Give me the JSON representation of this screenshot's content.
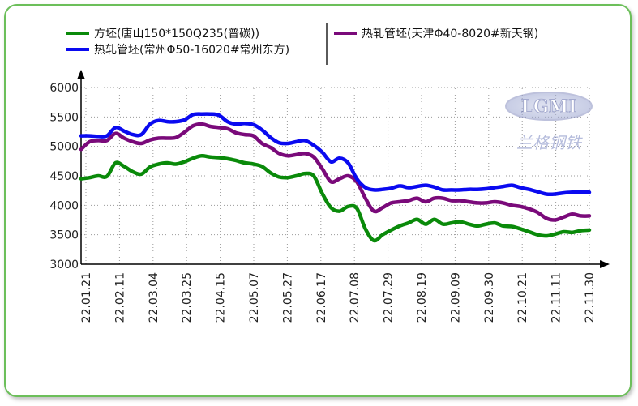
{
  "chart_data": {
    "type": "line",
    "ylim": [
      3000,
      6000
    ],
    "y_ticks": [
      "3000",
      "3500",
      "4000",
      "4500",
      "5000",
      "5500",
      "6000"
    ],
    "x_tick_labels": [
      "22.01.21",
      "22.02.11",
      "22.03.04",
      "22.03.25",
      "22.04.15",
      "22.05.07",
      "22.05.27",
      "22.06.17",
      "22.07.08",
      "22.07.29",
      "22.08.19",
      "22.09.09",
      "22.09.30",
      "22.10.21",
      "22.11.11",
      "22.11.30"
    ],
    "grid": true,
    "legend_position": "top",
    "series": [
      {
        "name": "方坯(唐山150*150Q235(普碳))",
        "color": "#0a8a0a",
        "values": [
          4450,
          4470,
          4500,
          4490,
          4720,
          4660,
          4570,
          4530,
          4650,
          4700,
          4720,
          4700,
          4740,
          4800,
          4840,
          4820,
          4810,
          4790,
          4760,
          4720,
          4700,
          4660,
          4550,
          4480,
          4470,
          4500,
          4540,
          4500,
          4200,
          3960,
          3900,
          3980,
          3950,
          3600,
          3400,
          3500,
          3580,
          3650,
          3700,
          3760,
          3680,
          3760,
          3680,
          3700,
          3720,
          3680,
          3650,
          3680,
          3700,
          3650,
          3640,
          3600,
          3550,
          3500,
          3480,
          3510,
          3550,
          3540,
          3570,
          3580
        ]
      },
      {
        "name": "热轧管坯(天津Φ40-8020#新天钢)",
        "color": "#7a0a7a",
        "values": [
          4950,
          5080,
          5100,
          5100,
          5220,
          5140,
          5080,
          5050,
          5110,
          5140,
          5140,
          5150,
          5240,
          5350,
          5380,
          5340,
          5320,
          5300,
          5230,
          5200,
          5180,
          5050,
          4980,
          4880,
          4840,
          4860,
          4880,
          4820,
          4620,
          4400,
          4450,
          4500,
          4400,
          4120,
          3900,
          3960,
          4040,
          4060,
          4080,
          4120,
          4060,
          4120,
          4120,
          4080,
          4080,
          4060,
          4040,
          4040,
          4060,
          4040,
          4000,
          3980,
          3940,
          3880,
          3780,
          3750,
          3800,
          3850,
          3820,
          3820
        ]
      },
      {
        "name": "热轧管坯(常州Φ50-16020#常州东方)",
        "color": "#0a0af0",
        "values": [
          5180,
          5180,
          5170,
          5180,
          5320,
          5260,
          5200,
          5200,
          5380,
          5440,
          5420,
          5420,
          5450,
          5540,
          5550,
          5550,
          5530,
          5420,
          5380,
          5390,
          5370,
          5280,
          5150,
          5060,
          5050,
          5080,
          5100,
          5020,
          4900,
          4740,
          4800,
          4720,
          4450,
          4300,
          4260,
          4270,
          4290,
          4330,
          4300,
          4320,
          4340,
          4310,
          4260,
          4260,
          4260,
          4270,
          4270,
          4280,
          4300,
          4320,
          4340,
          4300,
          4270,
          4230,
          4190,
          4190,
          4210,
          4220,
          4220,
          4220
        ]
      }
    ]
  },
  "watermark": {
    "logo_text": "LGMI",
    "sub_text": "兰格钢铁"
  }
}
